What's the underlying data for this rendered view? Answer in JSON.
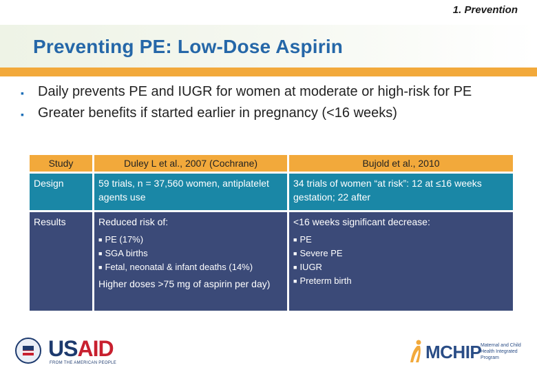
{
  "header": {
    "section_label": "1. Prevention",
    "title": "Preventing PE: Low-Dose Aspirin"
  },
  "bullets": [
    "Daily prevents PE and IUGR for women at moderate or high-risk for PE",
    "Greater benefits if started earlier in pregnancy (<16 weeks)"
  ],
  "table": {
    "headers": [
      "Study",
      "Duley L et al., 2007 (Cochrane)",
      "Bujold et al., 2010"
    ],
    "design": {
      "label": "Design",
      "duley": "59 trials, n = 37,560 women, antiplatelet agents use",
      "bujold": "34 trials of women “at risk”: 12 at ≤16 weeks gestation; 22 after"
    },
    "results": {
      "label": "Results",
      "duley_intro": "Reduced risk of:",
      "duley_items": [
        "PE (17%)",
        "SGA births",
        "Fetal, neonatal & infant deaths (14%)"
      ],
      "duley_extra": "Higher doses >75 mg of aspirin per day)",
      "bujold_intro": "<16 weeks significant decrease:",
      "bujold_items": [
        "PE",
        "Severe PE",
        "IUGR",
        "Preterm birth"
      ]
    }
  },
  "logos": {
    "usaid_us": "US",
    "usaid_aid": "AID",
    "usaid_tagline": "FROM THE AMERICAN PEOPLE",
    "mchip_word": "MCHIP",
    "mchip_tagline": "Maternal and Child Health Integrated Program"
  },
  "colors": {
    "title_blue": "#2567a8",
    "accent_orange": "#f2a93b",
    "design_teal": "#1a87a6",
    "results_navy": "#3b4a78"
  }
}
